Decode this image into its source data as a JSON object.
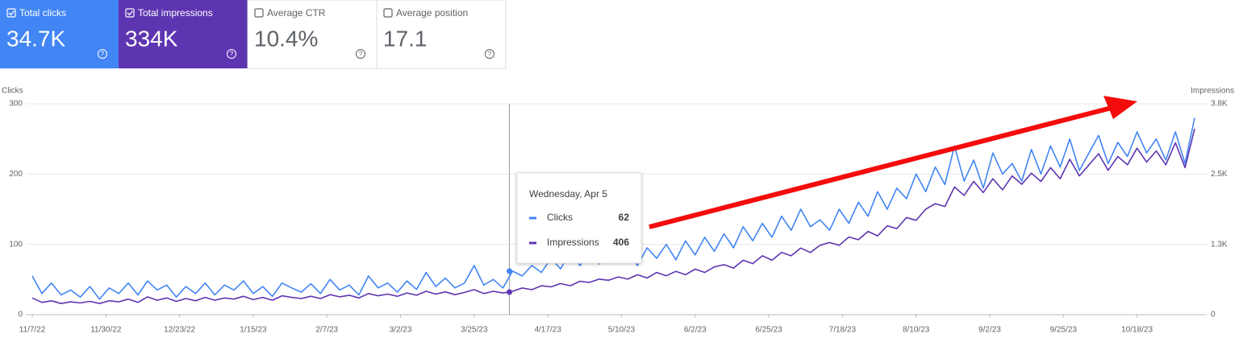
{
  "metrics": [
    {
      "label": "Total clicks",
      "value": "34.7K",
      "checked": true,
      "color": "#4285f4"
    },
    {
      "label": "Total impressions",
      "value": "334K",
      "checked": true,
      "color": "#5e35b1"
    },
    {
      "label": "Average CTR",
      "value": "10.4%",
      "checked": false,
      "color": "#ffffff"
    },
    {
      "label": "Average position",
      "value": "17.1",
      "checked": false,
      "color": "#ffffff"
    }
  ],
  "chart_data": {
    "type": "line",
    "ylabel": "Clicks",
    "y2label": "Impressions",
    "ylim": [
      0,
      300
    ],
    "yticks": [
      0,
      100,
      200,
      300
    ],
    "y2lim": [
      0,
      3800
    ],
    "y2ticks": [
      0,
      {
        "value": 1267,
        "label": "1.3K"
      },
      {
        "value": 2533,
        "label": "2.5K"
      },
      {
        "value": 3800,
        "label": "3.8K"
      }
    ],
    "grid": true,
    "xlim": [
      "2022-11-07",
      "2023-11-06"
    ],
    "xticks": [
      {
        "value": "2022-11-07",
        "label": "11/7/22"
      },
      {
        "value": "2022-11-30",
        "label": "11/30/22"
      },
      {
        "value": "2022-12-23",
        "label": "12/23/22"
      },
      {
        "value": "2023-01-15",
        "label": "1/15/23"
      },
      {
        "value": "2023-02-07",
        "label": "2/7/23"
      },
      {
        "value": "2023-03-02",
        "label": "3/2/23"
      },
      {
        "value": "2023-03-25",
        "label": "3/25/23"
      },
      {
        "value": "2023-04-17",
        "label": "4/17/23"
      },
      {
        "value": "2023-05-10",
        "label": "5/10/23"
      },
      {
        "value": "2023-06-02",
        "label": "6/2/23"
      },
      {
        "value": "2023-06-25",
        "label": "6/25/23"
      },
      {
        "value": "2023-07-18",
        "label": "7/18/23"
      },
      {
        "value": "2023-08-10",
        "label": "8/10/23"
      },
      {
        "value": "2023-09-02",
        "label": "9/2/23"
      },
      {
        "value": "2023-09-25",
        "label": "9/25/23"
      },
      {
        "value": "2023-10-18",
        "label": "10/18/23"
      }
    ],
    "x": [
      "2022-11-07",
      "2022-11-10",
      "2022-11-13",
      "2022-11-16",
      "2022-11-19",
      "2022-11-22",
      "2022-11-25",
      "2022-11-28",
      "2022-12-01",
      "2022-12-04",
      "2022-12-07",
      "2022-12-10",
      "2022-12-13",
      "2022-12-16",
      "2022-12-19",
      "2022-12-22",
      "2022-12-25",
      "2022-12-28",
      "2022-12-31",
      "2023-01-03",
      "2023-01-06",
      "2023-01-09",
      "2023-01-12",
      "2023-01-15",
      "2023-01-18",
      "2023-01-21",
      "2023-01-24",
      "2023-01-27",
      "2023-01-30",
      "2023-02-02",
      "2023-02-05",
      "2023-02-08",
      "2023-02-11",
      "2023-02-14",
      "2023-02-17",
      "2023-02-20",
      "2023-02-23",
      "2023-02-26",
      "2023-03-01",
      "2023-03-04",
      "2023-03-07",
      "2023-03-10",
      "2023-03-13",
      "2023-03-16",
      "2023-03-19",
      "2023-03-22",
      "2023-03-25",
      "2023-03-28",
      "2023-03-31",
      "2023-04-03",
      "2023-04-06",
      "2023-04-09",
      "2023-04-12",
      "2023-04-15",
      "2023-04-18",
      "2023-04-21",
      "2023-04-24",
      "2023-04-27",
      "2023-04-30",
      "2023-05-03",
      "2023-05-06",
      "2023-05-09",
      "2023-05-12",
      "2023-05-15",
      "2023-05-18",
      "2023-05-21",
      "2023-05-24",
      "2023-05-27",
      "2023-05-30",
      "2023-06-02",
      "2023-06-05",
      "2023-06-08",
      "2023-06-11",
      "2023-06-14",
      "2023-06-17",
      "2023-06-20",
      "2023-06-23",
      "2023-06-26",
      "2023-06-29",
      "2023-07-02",
      "2023-07-05",
      "2023-07-08",
      "2023-07-11",
      "2023-07-14",
      "2023-07-17",
      "2023-07-20",
      "2023-07-23",
      "2023-07-26",
      "2023-07-29",
      "2023-08-01",
      "2023-08-04",
      "2023-08-07",
      "2023-08-10",
      "2023-08-13",
      "2023-08-16",
      "2023-08-19",
      "2023-08-22",
      "2023-08-25",
      "2023-08-28",
      "2023-08-31",
      "2023-09-03",
      "2023-09-06",
      "2023-09-09",
      "2023-09-12",
      "2023-09-15",
      "2023-09-18",
      "2023-09-21",
      "2023-09-24",
      "2023-09-27",
      "2023-09-30",
      "2023-10-03",
      "2023-10-06",
      "2023-10-09",
      "2023-10-12",
      "2023-10-15",
      "2023-10-18",
      "2023-10-21",
      "2023-10-24",
      "2023-10-27",
      "2023-10-30",
      "2023-11-02",
      "2023-11-05"
    ],
    "series": [
      {
        "name": "Clicks",
        "color": "#4285f4",
        "values": [
          55,
          30,
          45,
          28,
          35,
          25,
          40,
          22,
          38,
          30,
          45,
          28,
          48,
          35,
          42,
          25,
          40,
          30,
          45,
          28,
          42,
          35,
          48,
          30,
          40,
          26,
          45,
          38,
          32,
          44,
          30,
          50,
          35,
          42,
          28,
          55,
          38,
          45,
          32,
          48,
          36,
          60,
          40,
          52,
          38,
          45,
          70,
          42,
          50,
          38,
          62,
          55,
          70,
          60,
          80,
          65,
          90,
          70,
          85,
          72,
          95,
          75,
          88,
          70,
          95,
          80,
          100,
          78,
          105,
          85,
          110,
          90,
          115,
          95,
          125,
          105,
          130,
          110,
          140,
          120,
          150,
          125,
          135,
          120,
          150,
          130,
          160,
          140,
          175,
          150,
          180,
          165,
          200,
          175,
          210,
          185,
          240,
          190,
          220,
          180,
          230,
          200,
          215,
          190,
          235,
          200,
          240,
          210,
          250,
          205,
          230,
          255,
          215,
          245,
          225,
          260,
          230,
          250,
          220,
          260,
          215,
          280
        ]
      },
      {
        "name": "Impressions",
        "color": "#5e35b1",
        "axis": "y2",
        "values": [
          300,
          220,
          250,
          200,
          230,
          210,
          240,
          200,
          250,
          230,
          280,
          220,
          320,
          260,
          300,
          240,
          290,
          250,
          310,
          260,
          300,
          280,
          330,
          270,
          310,
          260,
          340,
          310,
          290,
          330,
          290,
          360,
          320,
          350,
          300,
          380,
          340,
          370,
          330,
          390,
          350,
          420,
          370,
          410,
          360,
          400,
          450,
          380,
          420,
          390,
          420,
          480,
          450,
          520,
          500,
          560,
          520,
          600,
          580,
          640,
          620,
          680,
          640,
          720,
          660,
          760,
          700,
          780,
          720,
          820,
          760,
          860,
          900,
          840,
          980,
          920,
          1060,
          980,
          1120,
          1060,
          1200,
          1120,
          1250,
          1300,
          1250,
          1400,
          1350,
          1500,
          1420,
          1600,
          1550,
          1750,
          1700,
          1900,
          2000,
          1950,
          2300,
          2150,
          2400,
          2200,
          2450,
          2250,
          2500,
          2350,
          2550,
          2400,
          2650,
          2450,
          2800,
          2500,
          2700,
          2900,
          2600,
          2850,
          2700,
          3000,
          2750,
          2950,
          2700,
          3100,
          2650,
          3350
        ]
      }
    ],
    "tooltip": {
      "x": "2023-04-05",
      "title": "Wednesday, Apr 5",
      "items": [
        {
          "name": "Clicks",
          "value": 62
        },
        {
          "name": "Impressions",
          "value": 406
        }
      ]
    }
  }
}
